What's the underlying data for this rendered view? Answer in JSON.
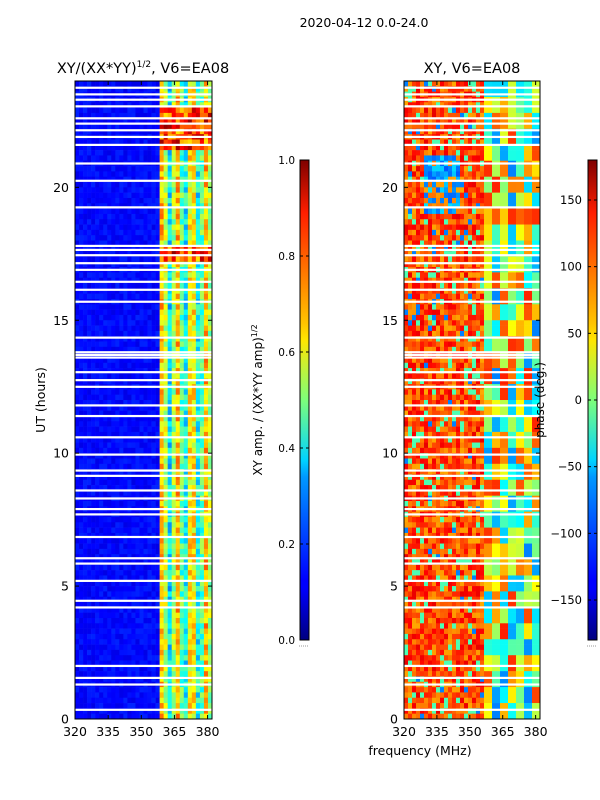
{
  "figure": {
    "suptitle": "2020-04-12 0.0-24.0",
    "shared_xlabel": "frequency (MHz)"
  },
  "chart_data": [
    {
      "type": "heatmap",
      "title_base": "XY/(XX*YY)",
      "title_exp": "1/2",
      "title_suffix": ", V6=EA08",
      "xlabel": "",
      "ylabel": "UT (hours)",
      "xlim": [
        320,
        382
      ],
      "ylim": [
        0,
        24
      ],
      "xticks": [
        320,
        335,
        350,
        365,
        380
      ],
      "yticks": [
        0,
        5,
        10,
        15,
        20
      ],
      "colorbar": {
        "label_base": "XY amp. / (XX*YY amp)",
        "label_exp": "1/2",
        "range": [
          0.0,
          1.0
        ],
        "ticks": [
          "0.0",
          "0.2",
          "0.4",
          "0.6",
          "0.8",
          "1.0"
        ],
        "tick_values": [
          0.0,
          0.2,
          0.4,
          0.6,
          0.8,
          1.0
        ]
      },
      "blank_rows_hours": [
        0.35,
        1.3,
        1.55,
        2.0,
        4.2,
        4.45,
        5.2,
        5.85,
        6.05,
        6.85,
        7.7,
        7.9,
        8.3,
        8.6,
        9.15,
        9.35,
        9.95,
        10.6,
        11.4,
        11.8,
        12.5,
        12.75,
        13.05,
        13.6,
        13.7,
        13.8,
        14.35,
        15.7,
        16.15,
        16.45,
        16.9,
        17.15,
        17.45,
        17.65,
        17.8,
        19.25,
        20.25,
        20.9,
        21.6,
        21.9,
        22.15,
        22.4,
        22.6,
        23.05,
        23.3,
        23.5,
        23.75
      ],
      "notes": "low-amplitude (blue) below 358 MHz; bright cyan/yellow structure 360-382 MHz; saturated red/yellow bands near 17.5 h and 21.5-23 h"
    },
    {
      "type": "heatmap",
      "title": "XY, V6=EA08",
      "xlabel": "",
      "ylabel": "",
      "xlim": [
        320,
        382
      ],
      "ylim": [
        0,
        24
      ],
      "xticks": [
        320,
        335,
        350,
        365,
        380
      ],
      "yticks": [
        0,
        5,
        10,
        15,
        20
      ],
      "colorbar": {
        "label": "phase (deg.)",
        "range": [
          -180,
          180
        ],
        "ticks": [
          "−150",
          "−100",
          "−50",
          "0",
          "50",
          "100",
          "150"
        ],
        "tick_values": [
          -150,
          -100,
          -50,
          0,
          50,
          100,
          150
        ]
      },
      "blank_rows_hours": [
        0.35,
        1.3,
        1.55,
        2.0,
        4.2,
        4.45,
        5.2,
        5.85,
        6.05,
        6.85,
        7.7,
        7.9,
        8.3,
        8.6,
        9.15,
        9.35,
        9.95,
        10.6,
        11.4,
        11.8,
        12.5,
        12.75,
        13.05,
        13.6,
        13.7,
        13.8,
        14.35,
        15.7,
        16.15,
        16.45,
        16.9,
        17.15,
        17.45,
        17.65,
        17.8,
        19.25,
        20.25,
        20.9,
        21.6,
        21.9,
        22.15,
        22.4,
        22.6,
        23.05,
        23.3,
        23.5,
        23.75
      ],
      "notes": "mostly orange/red phase below 358 MHz with yellow streaks; mixed cyan/yellow/blue structure 358-382 MHz; blue patches near 19-21 h at 330-345 MHz"
    }
  ]
}
